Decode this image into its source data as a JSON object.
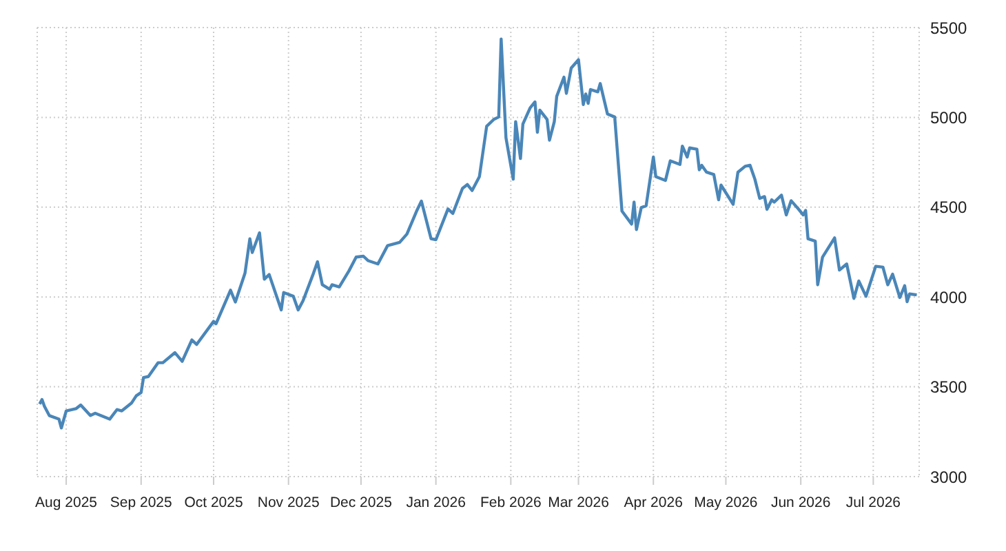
{
  "chart_data": {
    "type": "line",
    "x": [
      "2025-07-21",
      "2025-07-22",
      "2025-07-23",
      "2025-07-25",
      "2025-07-29",
      "2025-07-30",
      "2025-08-01",
      "2025-08-05",
      "2025-08-07",
      "2025-08-11",
      "2025-08-13",
      "2025-08-19",
      "2025-08-22",
      "2025-08-24",
      "2025-08-28",
      "2025-08-30",
      "2025-09-01",
      "2025-09-02",
      "2025-09-04",
      "2025-09-08",
      "2025-09-10",
      "2025-09-15",
      "2025-09-18",
      "2025-09-22",
      "2025-09-24",
      "2025-10-01",
      "2025-10-02",
      "2025-10-08",
      "2025-10-10",
      "2025-10-14",
      "2025-10-16",
      "2025-10-17",
      "2025-10-20",
      "2025-10-22",
      "2025-10-24",
      "2025-10-29",
      "2025-10-30",
      "2025-11-03",
      "2025-11-05",
      "2025-11-07",
      "2025-11-11",
      "2025-11-13",
      "2025-11-15",
      "2025-11-18",
      "2025-11-19",
      "2025-11-22",
      "2025-11-26",
      "2025-11-29",
      "2025-12-02",
      "2025-12-04",
      "2025-12-08",
      "2025-12-12",
      "2025-12-17",
      "2025-12-20",
      "2025-12-24",
      "2025-12-26",
      "2025-12-30",
      "2026-01-01",
      "2026-01-06",
      "2026-01-08",
      "2026-01-12",
      "2026-01-14",
      "2026-01-16",
      "2026-01-19",
      "2026-01-22",
      "2026-01-25",
      "2026-01-27",
      "2026-01-28",
      "2026-01-30",
      "2026-02-02",
      "2026-02-03",
      "2026-02-05",
      "2026-02-06",
      "2026-02-09",
      "2026-02-11",
      "2026-02-12",
      "2026-02-13",
      "2026-02-16",
      "2026-02-17",
      "2026-02-19",
      "2026-02-20",
      "2026-02-23",
      "2026-02-24",
      "2026-02-26",
      "2026-03-01",
      "2026-03-03",
      "2026-03-04",
      "2026-03-05",
      "2026-03-06",
      "2026-03-09",
      "2026-03-10",
      "2026-03-13",
      "2026-03-16",
      "2026-03-19",
      "2026-03-23",
      "2026-03-24",
      "2026-03-25",
      "2026-03-27",
      "2026-03-29",
      "2026-04-01",
      "2026-04-02",
      "2026-04-06",
      "2026-04-08",
      "2026-04-12",
      "2026-04-13",
      "2026-04-15",
      "2026-04-16",
      "2026-04-19",
      "2026-04-20",
      "2026-04-21",
      "2026-04-23",
      "2026-04-26",
      "2026-04-28",
      "2026-04-29",
      "2026-05-04",
      "2026-05-06",
      "2026-05-09",
      "2026-05-11",
      "2026-05-13",
      "2026-05-15",
      "2026-05-17",
      "2026-05-18",
      "2026-05-20",
      "2026-05-21",
      "2026-05-24",
      "2026-05-26",
      "2026-05-28",
      "2026-05-31",
      "2026-06-02",
      "2026-06-03",
      "2026-06-04",
      "2026-06-07",
      "2026-06-08",
      "2026-06-10",
      "2026-06-15",
      "2026-06-17",
      "2026-06-20",
      "2026-06-23",
      "2026-06-25",
      "2026-06-28",
      "2026-07-02",
      "2026-07-05",
      "2026-07-07",
      "2026-07-09",
      "2026-07-12",
      "2026-07-14",
      "2026-07-15",
      "2026-07-16",
      "2026-07-19"
    ],
    "series": [
      {
        "color": "#4a86b8",
        "values": [
          3404,
          3429,
          3391,
          3340,
          3320,
          3271,
          3366,
          3378,
          3399,
          3340,
          3353,
          3320,
          3373,
          3366,
          3409,
          3450,
          3468,
          3552,
          3557,
          3634,
          3634,
          3690,
          3642,
          3761,
          3736,
          3864,
          3851,
          4038,
          3972,
          4133,
          4324,
          4248,
          4357,
          4099,
          4125,
          3928,
          4025,
          4004,
          3928,
          3979,
          4120,
          4196,
          4068,
          4043,
          4068,
          4056,
          4145,
          4222,
          4227,
          4202,
          4184,
          4286,
          4304,
          4350,
          4478,
          4534,
          4324,
          4319,
          4490,
          4465,
          4605,
          4626,
          4593,
          4670,
          4950,
          4989,
          5002,
          5436,
          4886,
          4656,
          4976,
          4771,
          4963,
          5053,
          5086,
          4917,
          5040,
          4989,
          4873,
          4976,
          5117,
          5224,
          5134,
          5275,
          5321,
          5071,
          5130,
          5078,
          5155,
          5142,
          5188,
          5019,
          5002,
          4478,
          4406,
          4528,
          4375,
          4498,
          4508,
          4779,
          4670,
          4649,
          4758,
          4738,
          4840,
          4779,
          4830,
          4823,
          4708,
          4733,
          4695,
          4682,
          4541,
          4623,
          4516,
          4695,
          4728,
          4733,
          4656,
          4549,
          4559,
          4488,
          4541,
          4528,
          4567,
          4457,
          4536,
          4490,
          4457,
          4482,
          4324,
          4311,
          4068,
          4222,
          4329,
          4150,
          4184,
          3992,
          4089,
          4004,
          4171,
          4166,
          4068,
          4127,
          3997,
          4063,
          3974,
          4017,
          4012
        ]
      }
    ],
    "xlim": [
      "2025-07-20",
      "2026-07-20"
    ],
    "xticks": [
      {
        "value": "2025-08-01",
        "label": "Aug 2025"
      },
      {
        "value": "2025-09-01",
        "label": "Sep 2025"
      },
      {
        "value": "2025-10-01",
        "label": "Oct 2025"
      },
      {
        "value": "2025-11-01",
        "label": "Nov 2025"
      },
      {
        "value": "2025-12-01",
        "label": "Dec 2025"
      },
      {
        "value": "2026-01-01",
        "label": "Jan 2026"
      },
      {
        "value": "2026-02-01",
        "label": "Feb 2026"
      },
      {
        "value": "2026-03-01",
        "label": "Mar 2026"
      },
      {
        "value": "2026-04-01",
        "label": "Apr 2026"
      },
      {
        "value": "2026-05-01",
        "label": "May 2026"
      },
      {
        "value": "2026-06-01",
        "label": "Jun 2026"
      },
      {
        "value": "2026-07-01",
        "label": "Jul 2026"
      }
    ],
    "ylim": [
      3000,
      5500
    ],
    "yticks": [
      3000,
      3500,
      4000,
      4500,
      5000,
      5500
    ],
    "grid": true,
    "marker": "none",
    "line_style": "solid",
    "legend": false
  }
}
